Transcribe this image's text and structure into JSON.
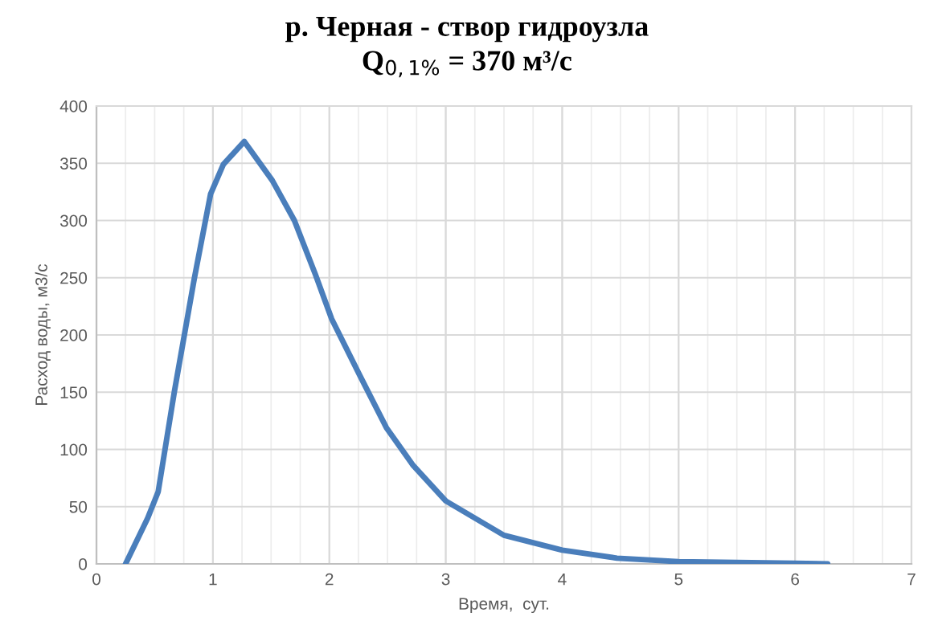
{
  "chart_data": {
    "type": "line",
    "title": "р. Черная - створ гидроузла",
    "subtitle": "Q$_{0,1%}$ = 370 м³/с",
    "xlabel": "Время,  сут.",
    "ylabel": "Расход воды, м3/с",
    "x": [
      0.25,
      0.44,
      0.53,
      0.67,
      0.84,
      0.98,
      1.09,
      1.27,
      1.51,
      1.7,
      1.88,
      2.02,
      2.26,
      2.49,
      2.72,
      3.0,
      3.5,
      4.0,
      4.47,
      5.0,
      6.0,
      6.28
    ],
    "series": [
      {
        "color": "#4a7ebb",
        "values": [
          0,
          40,
          63,
          151,
          249,
          323,
          349,
          369,
          335,
          300,
          253,
          214,
          165,
          119,
          86,
          55,
          25,
          12,
          5,
          2,
          0.5,
          0
        ]
      }
    ],
    "xlim": [
      0,
      7
    ],
    "ylim": [
      0,
      400
    ],
    "xticks": [
      0,
      1,
      2,
      3,
      4,
      5,
      6,
      7
    ],
    "yticks": [
      0,
      50,
      100,
      150,
      200,
      250,
      300,
      350,
      400
    ],
    "grid": true,
    "legend": false,
    "marker": "none",
    "line_style": "solid"
  }
}
